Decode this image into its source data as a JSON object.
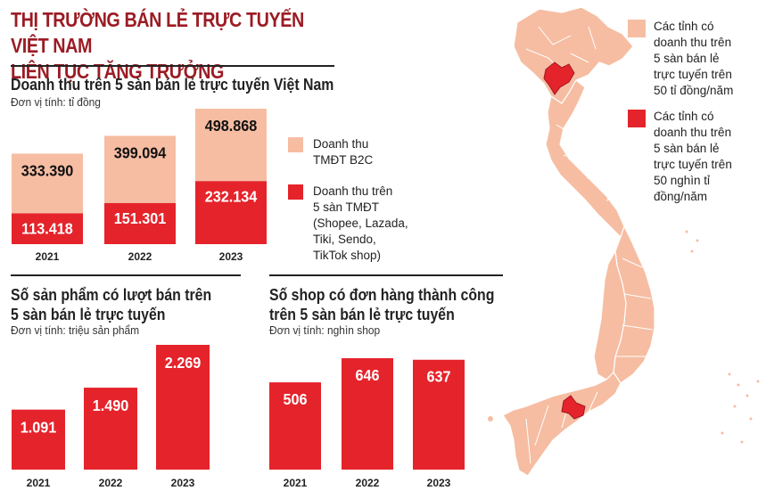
{
  "headline": [
    "THỊ TRƯỜNG BÁN LẺ TRỰC TUYẾN VIỆT NAM",
    "LIÊN TỤC TĂNG TRƯỞNG"
  ],
  "colors": {
    "light": "#f6bda2",
    "red": "#e5232b",
    "headline": "#9b1c24"
  },
  "chart1": {
    "title": "Doanh thu trên 5 sàn bán lẻ trực tuyến Việt Nam",
    "unit": "Đơn vị tính: tỉ đồng"
  },
  "chart2": {
    "title": [
      "Số sản phẩm có lượt bán trên",
      "5 sàn bán lẻ trực tuyến"
    ],
    "unit": "Đơn vị tính: triệu sản phẩm"
  },
  "chart3": {
    "title": [
      "Số shop có đơn hàng thành công",
      "trên 5 sàn bán lẻ trực tuyến"
    ],
    "unit": "Đơn vị tính: nghìn shop"
  },
  "legend": {
    "b2c": [
      "Doanh thu",
      "TMĐT B2C"
    ],
    "five": [
      "Doanh thu trên",
      "5 sàn TMĐT",
      "(Shopee, Lazada,",
      "Tiki, Sendo,",
      "TikTok shop)"
    ]
  },
  "map_legend": {
    "light": [
      "Các tỉnh có",
      "doanh thu trên",
      "5 sàn bán lẻ",
      "trực tuyến trên",
      "50 tỉ đồng/năm"
    ],
    "red": [
      "Các tỉnh có",
      "doanh thu trên",
      "5 sàn bán lẻ",
      "trực tuyến trên",
      "50 nghìn tỉ",
      "đồng/năm"
    ]
  },
  "chart_data": [
    {
      "type": "bar",
      "title": "Doanh thu trên 5 sàn bán lẻ trực tuyến Việt Nam",
      "categories": [
        "2021",
        "2022",
        "2023"
      ],
      "series": [
        {
          "name": "Doanh thu TMĐT B2C",
          "values": [
            333390,
            399094,
            498868
          ],
          "labels": [
            "333.390",
            "399.094",
            "498.868"
          ]
        },
        {
          "name": "Doanh thu trên 5 sàn TMĐT (Shopee, Lazada, Tiki, Sendo, TikTok shop)",
          "values": [
            113418,
            151301,
            232134
          ],
          "labels": [
            "113.418",
            "151.301",
            "232.134"
          ]
        }
      ]
    },
    {
      "type": "bar",
      "title": "Số sản phẩm có lượt bán trên 5 sàn bán lẻ trực tuyến",
      "categories": [
        "2021",
        "2022",
        "2023"
      ],
      "values": [
        1091,
        1490,
        2269
      ],
      "labels": [
        "1.091",
        "1.490",
        "2.269"
      ]
    },
    {
      "type": "bar",
      "title": "Số shop có đơn hàng thành công trên 5 sàn bán lẻ trực tuyến",
      "categories": [
        "2021",
        "2022",
        "2023"
      ],
      "values": [
        506,
        646,
        637
      ],
      "labels": [
        "506",
        "646",
        "637"
      ]
    }
  ]
}
